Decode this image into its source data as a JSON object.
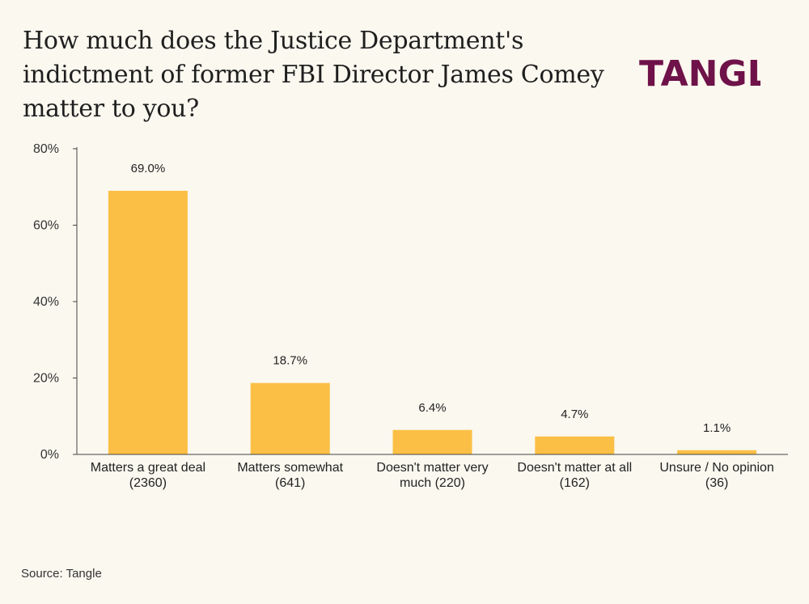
{
  "header": {
    "title": "How much does the Justice Department's indictment of former FBI Director James Comey matter to you?",
    "brand": "TANGLE"
  },
  "footer": {
    "source": "Source: Tangle"
  },
  "colors": {
    "bar": "#fcbf45",
    "axis": "#444444",
    "brand": "#6e1249",
    "background": "#faf8ef"
  },
  "chart_data": {
    "type": "bar",
    "title": "How much does the Justice Department's indictment of former FBI Director James Comey matter to you?",
    "xlabel": "",
    "ylabel": "",
    "ylim": [
      0,
      80
    ],
    "yticks": [
      0,
      20,
      40,
      60,
      80
    ],
    "ytick_labels": [
      "0%",
      "20%",
      "40%",
      "60%",
      "80%"
    ],
    "categories": [
      [
        "Matters a great deal",
        "(2360)"
      ],
      [
        "Matters somewhat",
        "(641)"
      ],
      [
        "Doesn't matter very",
        "much (220)"
      ],
      [
        "Doesn't matter at all",
        "(162)"
      ],
      [
        "Unsure / No opinion",
        "(36)"
      ]
    ],
    "values": [
      69.0,
      18.7,
      6.4,
      4.7,
      1.1
    ],
    "value_labels": [
      "69.0%",
      "18.7%",
      "6.4%",
      "4.7%",
      "1.1%"
    ],
    "grid": false,
    "legend": "none"
  }
}
